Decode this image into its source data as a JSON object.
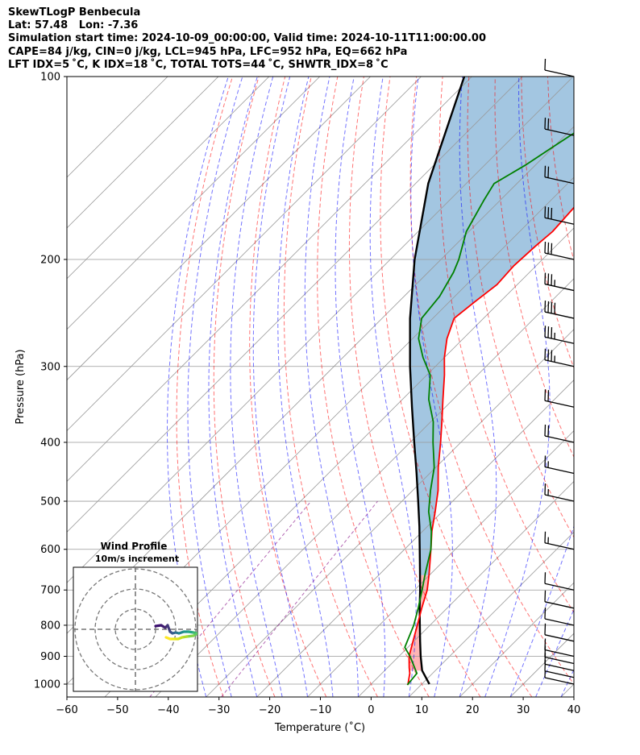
{
  "header": {
    "line1": "SkewTLogP Benbecula",
    "line2": "Lat: 57.48   Lon: -7.36",
    "line3": "Simulation start time: 2024-10-09_00:00:00, Valid time: 2024-10-11T11:00:00.00",
    "line4": "CAPE=84 j/kg, CIN=0 j/kg, LCL=945 hPa, LFC=952 hPa, EQ=662 hPa",
    "line5": "LFT IDX=5 ˚C, K IDX=18 ˚C, TOTAL TOTS=44 ˚C, SHWTR_IDX=8 ˚C"
  },
  "chart_data": {
    "type": "skewt",
    "xlabel": "Temperature (˚C)",
    "ylabel": "Pressure (hPa)",
    "xlim": [
      -60,
      40
    ],
    "ylim": [
      1050,
      100
    ],
    "x_ticks": [
      -60,
      -50,
      -40,
      -30,
      -20,
      -10,
      0,
      10,
      20,
      30,
      40
    ],
    "y_ticks": [
      100,
      200,
      300,
      400,
      500,
      600,
      700,
      800,
      900,
      1000
    ],
    "y_scale": "log",
    "grid": true,
    "colors": {
      "temperature": "#ff0000",
      "dewpoint": "#008000",
      "parcel": "#000000",
      "cape_fill": "#7fb0d6",
      "cin_fill": "#ff9999",
      "dry_adiabats": "#ff0000",
      "moist_adiabats": "#0000ff",
      "mixing_ratio": "#800080",
      "grid": "#999999"
    },
    "temperature": {
      "pressure": [
        1003,
        960,
        940,
        900,
        850,
        800,
        750,
        700,
        660,
        600,
        560,
        520,
        480,
        440,
        400,
        370,
        340,
        310,
        290,
        270,
        250,
        235,
        220,
        205,
        190,
        180,
        165,
        150,
        140,
        130,
        120,
        110,
        100
      ],
      "temp": [
        7.4,
        5.5,
        4.3,
        2.0,
        -0.2,
        -2.5,
        -5.0,
        -7.5,
        -10.2,
        -14.8,
        -18.2,
        -21.4,
        -25.0,
        -29.5,
        -34.0,
        -37.8,
        -42.0,
        -46.5,
        -50.0,
        -53.2,
        -55.8,
        -55.0,
        -54.0,
        -54.4,
        -54.0,
        -53.5,
        -54.0,
        -54.8,
        -53.0,
        -51.0,
        -52.0,
        -54.0,
        -56.8
      ]
    },
    "dewpoint": {
      "pressure": [
        1003,
        960,
        900,
        870,
        800,
        750,
        700,
        660,
        600,
        560,
        520,
        480,
        440,
        400,
        370,
        340,
        310,
        290,
        270,
        250,
        230,
        210,
        200,
        180,
        160,
        150,
        140,
        130,
        120,
        110,
        100
      ],
      "dewpoint": [
        7.3,
        6.9,
        2.2,
        -0.6,
        -3.2,
        -5.7,
        -8.5,
        -11.0,
        -14.8,
        -18.3,
        -22.7,
        -26.5,
        -30.3,
        -35.5,
        -39.5,
        -44.8,
        -49.3,
        -54.2,
        -58.8,
        -62.2,
        -63.0,
        -65.0,
        -66.5,
        -70.5,
        -73.2,
        -74.5,
        -72.0,
        -70.0,
        -67.8,
        -66.0,
        -64.8
      ]
    },
    "parcel": {
      "pressure": [
        1000,
        950,
        900,
        850,
        800,
        750,
        700,
        650,
        600,
        550,
        500,
        450,
        400,
        350,
        300,
        250,
        200,
        150,
        100
      ],
      "temp": [
        11.5,
        7.4,
        4.3,
        1.2,
        -2.0,
        -5.4,
        -8.9,
        -12.8,
        -17.0,
        -21.6,
        -26.8,
        -32.6,
        -39.2,
        -46.6,
        -55.0,
        -64.5,
        -75.2,
        -87.5,
        -101.5
      ]
    },
    "wind_barbs": [
      {
        "pressure": 1000,
        "barbs": "0.5"
      },
      {
        "pressure": 975,
        "barbs": "1"
      },
      {
        "pressure": 950,
        "barbs": "1"
      },
      {
        "pressure": 925,
        "barbs": "1"
      },
      {
        "pressure": 900,
        "barbs": "1"
      },
      {
        "pressure": 850,
        "barbs": "1"
      },
      {
        "pressure": 800,
        "barbs": "1"
      },
      {
        "pressure": 750,
        "barbs": "1"
      },
      {
        "pressure": 700,
        "barbs": "1"
      },
      {
        "pressure": 600,
        "barbs": "1.5"
      },
      {
        "pressure": 500,
        "barbs": "1.5"
      },
      {
        "pressure": 450,
        "barbs": "1.5"
      },
      {
        "pressure": 400,
        "barbs": "2"
      },
      {
        "pressure": 350,
        "barbs": "2"
      },
      {
        "pressure": 300,
        "barbs": "3.5"
      },
      {
        "pressure": 275,
        "barbs": "3.5"
      },
      {
        "pressure": 250,
        "barbs": "4"
      },
      {
        "pressure": 225,
        "barbs": "3.5"
      },
      {
        "pressure": 200,
        "barbs": "3"
      },
      {
        "pressure": 175,
        "barbs": "3"
      },
      {
        "pressure": 150,
        "barbs": "2"
      },
      {
        "pressure": 125,
        "barbs": "2"
      },
      {
        "pressure": 100,
        "barbs": "1"
      }
    ],
    "inset": {
      "title_line1": "Wind Profile",
      "title_line2": "10m/s increment",
      "rings": [
        1,
        2,
        3
      ]
    }
  }
}
